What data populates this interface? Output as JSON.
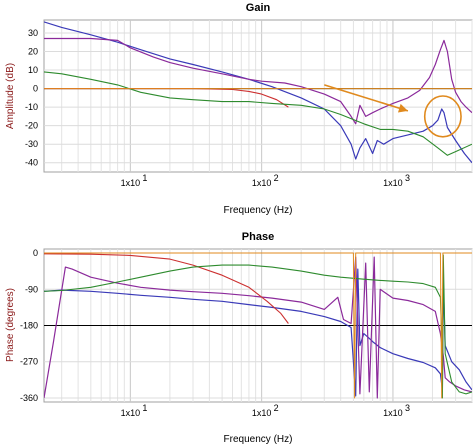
{
  "chart_data": [
    {
      "type": "line",
      "title": "Gain",
      "xlabel": "Frequency (Hz)",
      "ylabel": "Amplitude (dB)",
      "xscale": "log",
      "xlim": [
        2.2,
        4000
      ],
      "ylim": [
        -45,
        37
      ],
      "yticks": [
        30,
        20,
        10,
        0,
        -10,
        -20,
        -30,
        -40
      ],
      "xtick_labels": [
        {
          "value": 10,
          "label": "1x10"
        },
        {
          "value": 100,
          "label": "1x10"
        },
        {
          "value": 1000,
          "label": "1x10"
        }
      ],
      "xtick_exponents": [
        "1",
        "2",
        "3"
      ],
      "grid": true,
      "reference_line": 0,
      "annotation": {
        "type": "arrow-and-circle",
        "color": "#e08a1e",
        "arrow_from": [
          300,
          2
        ],
        "arrow_to": [
          1300,
          -12
        ],
        "circle_center": [
          2400,
          -15
        ],
        "circle_radius_x": 900,
        "circle_radius_y": 11
      },
      "series": [
        {
          "color": "#3a3ab8",
          "points": [
            [
              2.2,
              36
            ],
            [
              3,
              33
            ],
            [
              5,
              29
            ],
            [
              8,
              25
            ],
            [
              12,
              21
            ],
            [
              20,
              16
            ],
            [
              30,
              13
            ],
            [
              50,
              9
            ],
            [
              80,
              5
            ],
            [
              120,
              1
            ],
            [
              200,
              -5
            ],
            [
              300,
              -11
            ],
            [
              400,
              -20
            ],
            [
              480,
              -30
            ],
            [
              520,
              -38
            ],
            [
              560,
              -32
            ],
            [
              620,
              -27
            ],
            [
              700,
              -35
            ],
            [
              760,
              -28
            ],
            [
              850,
              -30
            ],
            [
              1000,
              -27
            ],
            [
              1300,
              -25
            ],
            [
              1700,
              -23
            ],
            [
              2000,
              -20
            ],
            [
              2200,
              -17
            ],
            [
              2350,
              -11
            ],
            [
              2450,
              -13
            ],
            [
              2600,
              -21
            ],
            [
              3000,
              -28
            ],
            [
              3500,
              -35
            ],
            [
              4000,
              -40
            ]
          ]
        },
        {
          "color": "#8b2a9b",
          "points": [
            [
              2.2,
              27
            ],
            [
              3,
              27
            ],
            [
              5,
              27
            ],
            [
              8,
              26
            ],
            [
              10,
              22
            ],
            [
              15,
              17
            ],
            [
              20,
              14
            ],
            [
              30,
              11
            ],
            [
              50,
              8
            ],
            [
              80,
              5
            ],
            [
              100,
              4
            ],
            [
              150,
              3
            ],
            [
              200,
              1
            ],
            [
              300,
              -3
            ],
            [
              400,
              -7
            ],
            [
              480,
              -15
            ],
            [
              520,
              -19
            ],
            [
              560,
              -9
            ],
            [
              620,
              -15
            ],
            [
              700,
              -13
            ],
            [
              800,
              -11
            ],
            [
              1000,
              -8
            ],
            [
              1300,
              -5
            ],
            [
              1600,
              -1
            ],
            [
              1900,
              6
            ],
            [
              2100,
              13
            ],
            [
              2300,
              21
            ],
            [
              2450,
              26
            ],
            [
              2600,
              20
            ],
            [
              2800,
              5
            ],
            [
              3000,
              -2
            ],
            [
              3300,
              -7
            ],
            [
              3600,
              -10
            ],
            [
              4000,
              -13
            ]
          ]
        },
        {
          "color": "#cc3030",
          "points": [
            [
              2.2,
              0
            ],
            [
              10,
              0
            ],
            [
              30,
              0
            ],
            [
              60,
              -0.5
            ],
            [
              80,
              -1.5
            ],
            [
              100,
              -3
            ],
            [
              130,
              -6
            ],
            [
              160,
              -10
            ]
          ]
        },
        {
          "color": "#2e8b2e",
          "points": [
            [
              2.2,
              9
            ],
            [
              3,
              8
            ],
            [
              5,
              5
            ],
            [
              8,
              2
            ],
            [
              12,
              -2
            ],
            [
              20,
              -5
            ],
            [
              30,
              -6
            ],
            [
              50,
              -7
            ],
            [
              80,
              -7
            ],
            [
              120,
              -8
            ],
            [
              200,
              -9
            ],
            [
              300,
              -11
            ],
            [
              400,
              -14
            ],
            [
              600,
              -19
            ],
            [
              800,
              -22
            ],
            [
              1000,
              -22
            ],
            [
              1300,
              -23
            ],
            [
              1700,
              -26
            ],
            [
              2200,
              -32
            ],
            [
              2600,
              -36
            ],
            [
              3000,
              -34
            ],
            [
              4000,
              -30
            ]
          ]
        },
        {
          "color": "#e08a1e",
          "points": [
            [
              2.2,
              0
            ],
            [
              4000,
              0
            ]
          ]
        }
      ]
    },
    {
      "type": "line",
      "title": "Phase",
      "xlabel": "Frequency (Hz)",
      "ylabel": "Phase (degrees)",
      "xscale": "log",
      "xlim": [
        2.2,
        4000
      ],
      "ylim": [
        -370,
        10
      ],
      "yticks": [
        0,
        -90,
        -180,
        -270,
        -360
      ],
      "xtick_labels": [
        {
          "value": 10,
          "label": "1x10"
        },
        {
          "value": 100,
          "label": "1x10"
        },
        {
          "value": 1000,
          "label": "1x10"
        }
      ],
      "xtick_exponents": [
        "1",
        "2",
        "3"
      ],
      "grid": true,
      "reference_line": -180,
      "series": [
        {
          "color": "#3a3ab8",
          "points": [
            [
              2.2,
              -95
            ],
            [
              3,
              -92
            ],
            [
              5,
              -95
            ],
            [
              8,
              -100
            ],
            [
              12,
              -105
            ],
            [
              20,
              -110
            ],
            [
              30,
              -115
            ],
            [
              50,
              -120
            ],
            [
              80,
              -128
            ],
            [
              120,
              -135
            ],
            [
              200,
              -145
            ],
            [
              300,
              -158
            ],
            [
              400,
              -170
            ],
            [
              480,
              -185
            ],
            [
              520,
              -355
            ],
            [
              540,
              -40
            ],
            [
              560,
              -230
            ],
            [
              600,
              -200
            ],
            [
              650,
              -210
            ],
            [
              700,
              -220
            ],
            [
              800,
              -235
            ],
            [
              1000,
              -250
            ],
            [
              1300,
              -262
            ],
            [
              1700,
              -272
            ],
            [
              2100,
              -285
            ],
            [
              2300,
              -300
            ],
            [
              2380,
              -340
            ],
            [
              2420,
              -70
            ],
            [
              2500,
              -230
            ],
            [
              2800,
              -270
            ],
            [
              3200,
              -290
            ],
            [
              3600,
              -320
            ],
            [
              4000,
              -340
            ]
          ]
        },
        {
          "color": "#8b2a9b",
          "points": [
            [
              2.2,
              -360
            ],
            [
              2.6,
              -220
            ],
            [
              3.2,
              -35
            ],
            [
              3.6,
              -40
            ],
            [
              5,
              -60
            ],
            [
              8,
              -75
            ],
            [
              12,
              -85
            ],
            [
              20,
              -92
            ],
            [
              30,
              -96
            ],
            [
              50,
              -100
            ],
            [
              80,
              -106
            ],
            [
              120,
              -112
            ],
            [
              200,
              -122
            ],
            [
              300,
              -140
            ],
            [
              380,
              -110
            ],
            [
              420,
              -165
            ],
            [
              480,
              -175
            ],
            [
              520,
              -10
            ],
            [
              560,
              -350
            ],
            [
              620,
              -25
            ],
            [
              660,
              -345
            ],
            [
              720,
              -10
            ],
            [
              760,
              -360
            ],
            [
              800,
              -90
            ],
            [
              1000,
              -112
            ],
            [
              1300,
              -118
            ],
            [
              1700,
              -128
            ],
            [
              2100,
              -145
            ],
            [
              2300,
              -200
            ],
            [
              2420,
              -255
            ],
            [
              2500,
              -310
            ],
            [
              2700,
              -320
            ],
            [
              3000,
              -330
            ],
            [
              3500,
              -340
            ],
            [
              4000,
              -345
            ]
          ]
        },
        {
          "color": "#cc3030",
          "points": [
            [
              2.2,
              -2
            ],
            [
              5,
              -3
            ],
            [
              10,
              -6
            ],
            [
              20,
              -15
            ],
            [
              30,
              -30
            ],
            [
              50,
              -55
            ],
            [
              80,
              -85
            ],
            [
              110,
              -120
            ],
            [
              140,
              -150
            ],
            [
              160,
              -175
            ]
          ]
        },
        {
          "color": "#2e8b2e",
          "points": [
            [
              2.2,
              -95
            ],
            [
              3,
              -93
            ],
            [
              5,
              -85
            ],
            [
              8,
              -72
            ],
            [
              12,
              -60
            ],
            [
              20,
              -45
            ],
            [
              30,
              -35
            ],
            [
              50,
              -30
            ],
            [
              80,
              -30
            ],
            [
              120,
              -35
            ],
            [
              200,
              -45
            ],
            [
              300,
              -55
            ],
            [
              400,
              -60
            ],
            [
              600,
              -65
            ],
            [
              800,
              -68
            ],
            [
              1000,
              -70
            ],
            [
              1300,
              -72
            ],
            [
              1700,
              -76
            ],
            [
              2100,
              -85
            ],
            [
              2300,
              -110
            ],
            [
              2350,
              -200
            ],
            [
              2380,
              -360
            ],
            [
              2420,
              -5
            ],
            [
              2500,
              -250
            ],
            [
              2800,
              -320
            ],
            [
              3200,
              -345
            ],
            [
              3600,
              -350
            ],
            [
              4000,
              -345
            ]
          ]
        },
        {
          "color": "#e08a1e",
          "points": [
            [
              2.2,
              0
            ],
            [
              500,
              0
            ],
            [
              510,
              -360
            ],
            [
              520,
              0
            ],
            [
              2300,
              0
            ],
            [
              2350,
              -360
            ],
            [
              2400,
              0
            ],
            [
              4000,
              0
            ]
          ]
        }
      ]
    }
  ]
}
